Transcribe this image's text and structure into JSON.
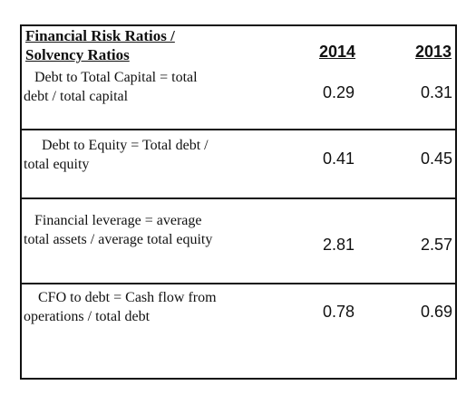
{
  "header": {
    "title_line1": "Financial Risk Ratios /",
    "title_line2": "Solvency Ratios",
    "year_a": "2014",
    "year_b": "2013"
  },
  "rows": [
    {
      "label_line1": "Debt to Total Capital = total",
      "label_line2": "debt / total capital",
      "value_2014": "0.29",
      "value_2013": "0.31"
    },
    {
      "label_line1": "Debt to Equity = Total debt /",
      "label_line2": "total equity",
      "value_2014": "0.41",
      "value_2013": "0.45"
    },
    {
      "label_line1": "Financial leverage = average",
      "label_line2": "total assets / average total equity",
      "value_2014": "2.81",
      "value_2013": "2.57"
    },
    {
      "label_line1": "CFO to debt = Cash flow from",
      "label_line2": "operations / total debt",
      "value_2014": "0.78",
      "value_2013": "0.69"
    }
  ]
}
